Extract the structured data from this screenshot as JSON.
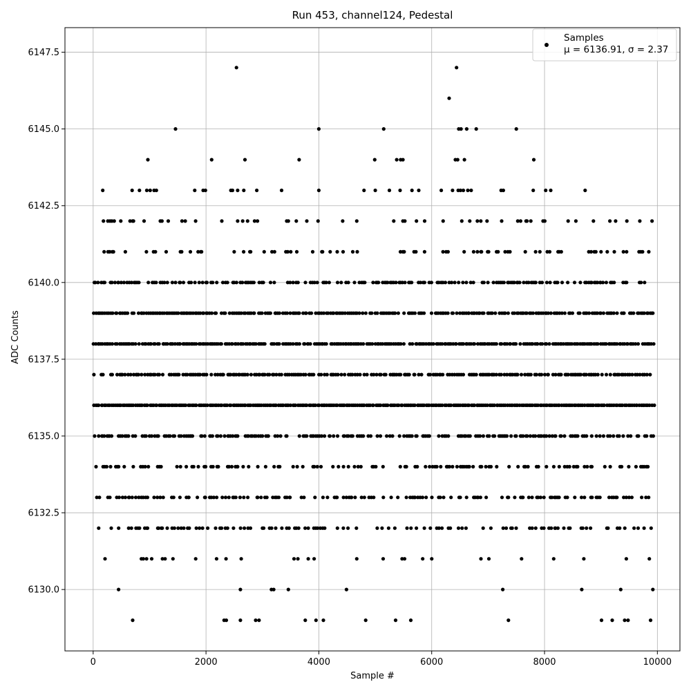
{
  "chart_data": {
    "type": "scatter",
    "title": "Run 453, channel124, Pedestal",
    "xlabel": "Sample #",
    "ylabel": "ADC Counts",
    "xlim": [
      -500,
      10400
    ],
    "ylim": [
      6128.0,
      6148.3
    ],
    "xticks": [
      0,
      2000,
      4000,
      6000,
      8000,
      10000
    ],
    "xtick_labels": [
      "0",
      "2000",
      "4000",
      "6000",
      "8000",
      "10000"
    ],
    "yticks": [
      6130.0,
      6132.5,
      6135.0,
      6137.5,
      6140.0,
      6142.5,
      6145.0,
      6147.5
    ],
    "ytick_labels": [
      "6130.0",
      "6132.5",
      "6135.0",
      "6137.5",
      "6140.0",
      "6142.5",
      "6145.0",
      "6147.5"
    ],
    "grid": true,
    "legend_position": "top-right",
    "marker_color": "#000000",
    "series": [
      {
        "name": "Samples",
        "stats_label": "μ = 6136.91, σ = 2.37",
        "x_range": [
          0,
          9950
        ],
        "levels": [
          6136,
          6138,
          6139,
          6137,
          6135,
          6140,
          6133,
          6134,
          6132,
          6141,
          6142,
          6131
        ],
        "points": [
          [
            2540,
            6147
          ],
          [
            6440,
            6147
          ],
          [
            6310,
            6146
          ],
          [
            1460,
            6145
          ],
          [
            4000,
            6145
          ],
          [
            5150,
            6145
          ],
          [
            6480,
            6145
          ],
          [
            6520,
            6145
          ],
          [
            6620,
            6145
          ],
          [
            6790,
            6145
          ],
          [
            7500,
            6145
          ],
          [
            970,
            6144
          ],
          [
            2100,
            6144
          ],
          [
            2690,
            6144
          ],
          [
            3650,
            6144
          ],
          [
            4990,
            6144
          ],
          [
            5380,
            6144
          ],
          [
            5450,
            6144
          ],
          [
            5490,
            6144
          ],
          [
            6420,
            6144
          ],
          [
            6460,
            6144
          ],
          [
            6580,
            6144
          ],
          [
            7810,
            6144
          ],
          [
            170,
            6143
          ],
          [
            690,
            6143
          ],
          [
            820,
            6143
          ],
          [
            950,
            6143
          ],
          [
            1010,
            6143
          ],
          [
            1080,
            6143
          ],
          [
            1120,
            6143
          ],
          [
            1800,
            6143
          ],
          [
            1950,
            6143
          ],
          [
            1990,
            6143
          ],
          [
            2440,
            6143
          ],
          [
            2470,
            6143
          ],
          [
            2560,
            6143
          ],
          [
            2670,
            6143
          ],
          [
            2900,
            6143
          ],
          [
            3340,
            6143
          ],
          [
            4000,
            6143
          ],
          [
            4800,
            6143
          ],
          [
            5000,
            6143
          ],
          [
            5250,
            6143
          ],
          [
            5440,
            6143
          ],
          [
            5650,
            6143
          ],
          [
            5770,
            6143
          ],
          [
            6170,
            6143
          ],
          [
            6370,
            6143
          ],
          [
            6470,
            6143
          ],
          [
            6510,
            6143
          ],
          [
            6560,
            6143
          ],
          [
            6640,
            6143
          ],
          [
            6700,
            6143
          ],
          [
            7230,
            6143
          ],
          [
            7270,
            6143
          ],
          [
            7800,
            6143
          ],
          [
            8020,
            6143
          ],
          [
            8110,
            6143
          ],
          [
            8720,
            6143
          ],
          [
            450,
            6130
          ],
          [
            2610,
            6130
          ],
          [
            3160,
            6130
          ],
          [
            3200,
            6130
          ],
          [
            3460,
            6130
          ],
          [
            4490,
            6130
          ],
          [
            7260,
            6130
          ],
          [
            8660,
            6130
          ],
          [
            9350,
            6130
          ],
          [
            9920,
            6130
          ],
          [
            700,
            6129
          ],
          [
            2320,
            6129
          ],
          [
            2360,
            6129
          ],
          [
            2610,
            6129
          ],
          [
            2880,
            6129
          ],
          [
            2940,
            6129
          ],
          [
            3760,
            6129
          ],
          [
            3950,
            6129
          ],
          [
            4080,
            6129
          ],
          [
            4830,
            6129
          ],
          [
            5360,
            6129
          ],
          [
            5630,
            6129
          ],
          [
            7360,
            6129
          ],
          [
            9010,
            6129
          ],
          [
            9200,
            6129
          ],
          [
            9420,
            6129
          ],
          [
            9480,
            6129
          ],
          [
            9880,
            6129
          ]
        ]
      }
    ]
  }
}
